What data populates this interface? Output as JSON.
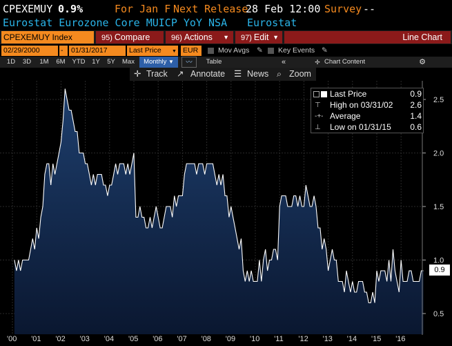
{
  "header": {
    "ticker": "CPEXEMUY",
    "last_value": "0.9%",
    "for_label": "For Jan F",
    "next_release_label": "Next Release",
    "next_release_date": "28 Feb 12:00",
    "survey_label": "Survey",
    "survey_value": "--",
    "description": "Eurostat Eurozone Core MUICP YoY NSA",
    "source": "Eurostat"
  },
  "toolbar": {
    "security": "CPEXEMUY Index",
    "compare_num": "95)",
    "compare_label": "Compare",
    "actions_num": "96)",
    "actions_label": "Actions",
    "edit_num": "97)",
    "edit_label": "Edit",
    "chart_type": "Line Chart"
  },
  "controls": {
    "start_date": "02/29/2000",
    "dash": "-",
    "end_date": "01/31/2017",
    "field": "Last Price",
    "currency": "EUR",
    "mov_avgs": "Mov Avgs",
    "key_events": "Key Events"
  },
  "ranges": {
    "items": [
      "1D",
      "3D",
      "1M",
      "6M",
      "YTD",
      "1Y",
      "5Y",
      "Max"
    ],
    "period": "Monthly",
    "table": "Table",
    "chart_content": "Chart Content"
  },
  "tools": {
    "track": "Track",
    "annotate": "Annotate",
    "news": "News",
    "zoom": "Zoom"
  },
  "legend": {
    "last_price_label": "Last Price",
    "last_price_value": "0.9",
    "high_label": "High on 03/31/02",
    "high_value": "2.6",
    "average_label": "Average",
    "average_value": "1.4",
    "low_label": "Low on 01/31/15",
    "low_value": "0.6"
  },
  "colors": {
    "background": "#000000",
    "orange": "#f58a1f",
    "accent_blue": "#2ab4e8",
    "red_button": "#8b1a1a",
    "area_top": "#1e3f6e",
    "area_bottom": "#0a1730"
  },
  "chart_data": {
    "type": "area",
    "frequency": "monthly",
    "start": "2000-02",
    "end": "2017-01",
    "ylim": [
      0.5,
      2.7
    ],
    "yticks": [
      0.5,
      1.0,
      1.5,
      2.0,
      2.5
    ],
    "ytick_labels": [
      "0.5",
      "1.0",
      "1.5",
      "2.0",
      "2.5"
    ],
    "xtick_labels": [
      "'00",
      "'01",
      "'02",
      "'03",
      "'04",
      "'05",
      "'06",
      "'07",
      "'08",
      "'09",
      "'10",
      "'11",
      "'12",
      "'13",
      "'14",
      "'15",
      "'16"
    ],
    "xticks_year": [
      2000,
      2001,
      2002,
      2003,
      2004,
      2005,
      2006,
      2007,
      2008,
      2009,
      2010,
      2011,
      2012,
      2013,
      2014,
      2015,
      2016
    ],
    "last_value_label": "0.9",
    "series": [
      {
        "values": [
          1.0,
          0.9,
          1.0,
          0.9,
          1.0,
          1.0,
          1.0,
          1.0,
          1.1,
          1.2,
          1.1,
          1.3,
          1.2,
          1.4,
          1.5,
          1.8,
          1.9,
          1.9,
          1.7,
          1.9,
          1.8,
          1.9,
          2.0,
          2.1,
          2.3,
          2.6,
          2.5,
          2.4,
          2.4,
          2.3,
          2.2,
          2.2,
          2.0,
          2.0,
          2.0,
          1.9,
          1.9,
          1.8,
          1.7,
          1.8,
          1.7,
          1.8,
          1.8,
          1.8,
          1.7,
          1.7,
          1.6,
          1.7,
          1.7,
          1.8,
          1.9,
          1.8,
          1.9,
          1.9,
          1.9,
          1.8,
          1.9,
          1.8,
          1.9,
          2.0,
          1.4,
          1.4,
          1.5,
          1.4,
          1.4,
          1.3,
          1.3,
          1.4,
          1.3,
          1.4,
          1.5,
          1.4,
          1.3,
          1.3,
          1.4,
          1.5,
          1.5,
          1.5,
          1.4,
          1.6,
          1.5,
          1.6,
          1.6,
          1.6,
          1.8,
          1.9,
          1.9,
          1.9,
          1.9,
          1.9,
          1.8,
          1.9,
          1.9,
          1.9,
          1.8,
          1.9,
          1.9,
          1.9,
          1.9,
          1.8,
          1.7,
          1.8,
          1.7,
          1.8,
          1.6,
          1.6,
          1.4,
          1.5,
          1.4,
          1.3,
          1.2,
          1.1,
          1.2,
          0.9,
          0.8,
          0.9,
          0.8,
          0.9,
          0.8,
          0.8,
          0.8,
          1.0,
          0.8,
          1.0,
          1.1,
          0.9,
          1.0,
          1.0,
          1.1,
          1.1,
          1.0,
          1.5,
          1.6,
          1.6,
          1.6,
          1.5,
          1.5,
          1.5,
          1.6,
          1.6,
          1.5,
          1.6,
          1.5,
          1.5,
          1.7,
          1.6,
          1.5,
          1.5,
          1.6,
          1.5,
          1.3,
          1.3,
          1.1,
          1.2,
          1.1,
          0.9,
          1.0,
          1.1,
          1.0,
          1.0,
          0.8,
          0.8,
          0.8,
          0.7,
          0.9,
          0.8,
          0.7,
          0.8,
          0.7,
          0.7,
          0.8,
          0.8,
          0.8,
          0.7,
          0.7,
          0.6,
          0.6,
          0.7,
          0.6,
          0.9,
          0.8,
          0.9,
          0.9,
          0.9,
          0.8,
          1.0,
          0.8,
          1.1,
          0.9,
          0.8,
          0.7,
          1.0,
          0.8,
          0.8,
          0.8,
          0.9,
          0.9,
          0.8,
          0.8,
          0.8,
          0.8,
          0.9,
          0.9
        ]
      }
    ]
  }
}
